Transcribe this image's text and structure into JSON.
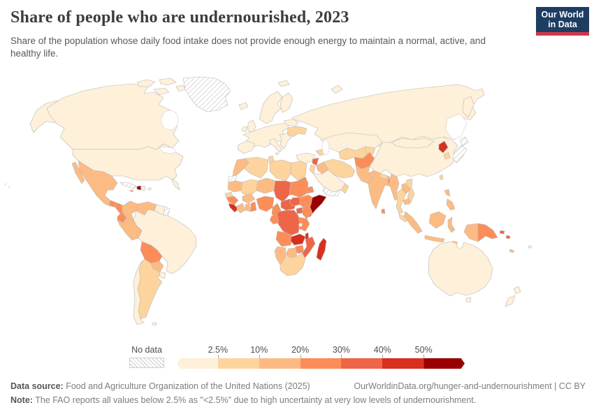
{
  "header": {
    "title": "Share of people who are undernourished, 2023",
    "subtitle": "Share of the population whose daily food intake does not provide enough energy to maintain a normal, active, and healthy life."
  },
  "logo": {
    "line1": "Our World",
    "line2": "in Data",
    "bg_color": "#1d3d63",
    "accent_color": "#d2374a"
  },
  "legend": {
    "no_data_label": "No data",
    "tick_labels": [
      "2.5%",
      "10%",
      "20%",
      "30%",
      "40%",
      "50%"
    ]
  },
  "footer": {
    "source_label": "Data source:",
    "source_text": " Food and Agriculture Organization of the United Nations (2025)",
    "attribution": "OurWorldinData.org/hunger-and-undernourishment | CC BY",
    "note_label": "Note:",
    "note_text": " The FAO reports all values below 2.5% as \"<2.5%\" due to high uncertainty at very low levels of undernourishment."
  },
  "chart_data": {
    "type": "choropleth-map",
    "title": "Share of people who are undernourished, 2023",
    "unit": "% of population",
    "legend_position": "bottom",
    "bins": [
      {
        "label": "<2.5%",
        "color": "#fef0d9"
      },
      {
        "label": "2.5%-10%",
        "color": "#fdd49e"
      },
      {
        "label": "10%-20%",
        "color": "#fdbb84"
      },
      {
        "label": "20%-30%",
        "color": "#fc8d59"
      },
      {
        "label": "30%-40%",
        "color": "#ef6548"
      },
      {
        "label": "40%-50%",
        "color": "#d7301f"
      },
      {
        "label": ">50%",
        "color": "#990000"
      },
      {
        "label": "No data",
        "color": "hatched"
      }
    ],
    "regions": {
      "canada": 0,
      "usa": 0,
      "alaska": 0,
      "florida": 0,
      "arctic-1": 0,
      "arctic-2": 0,
      "arctic-3": 0,
      "arctic-4": 0,
      "greenland": "nd",
      "iceland": 0,
      "svalbard": 0,
      "novaya-zemlya": 0,
      "mexico": 2,
      "baja": 2,
      "guatemala": 3,
      "honduras-nicaragua": 3,
      "costa-rica-panama": 1,
      "cuba": "nd",
      "haiti": 6,
      "dominican-republic": 0,
      "puerto-rico": 0,
      "jamaica": 2,
      "colombia": 2,
      "venezuela": 2,
      "guyana-suriname": 0,
      "french-guiana": "nd",
      "ecuador": 3,
      "peru": 2,
      "brazil": 0,
      "bolivia": 3,
      "paraguay": 2,
      "argentina": 1,
      "chile": 0,
      "uruguay": 0,
      "falklands": 0,
      "uk": 0,
      "ireland": 0,
      "scandinavia": 0,
      "finland": 0,
      "west-europe": 0,
      "iberia": 0,
      "italy": 0,
      "sicily": 0,
      "balkans": 0,
      "ukraine": 1,
      "belarus-baltics": 0,
      "russia": 0,
      "kamchatka": 0,
      "turkey": 0,
      "caucasus": 1,
      "syria": 4,
      "iraq": 2,
      "jordan-israel": 1,
      "saudi-arabia": 0,
      "yemen": "nd",
      "oman": 1,
      "iran": 1,
      "kazakhstan": 0,
      "uzbek-turkmen": 1,
      "kyrgyz-tajik": 1,
      "afghanistan": 3,
      "pakistan": 2,
      "india": 2,
      "nepal": 1,
      "bangladesh": 3,
      "sri-lanka": 3,
      "china": 0,
      "mongolia": 0,
      "north-korea": 5,
      "south-korea": 1,
      "japan-north": "nd",
      "japan-south": "nd",
      "taiwan": 1,
      "myanmar": 2,
      "thailand": 1,
      "laos": 2,
      "vietnam": 1,
      "cambodia": 2,
      "malaysia": 1,
      "sumatra": 2,
      "java": 2,
      "borneo": 2,
      "sulawesi": 2,
      "timor": 2,
      "papua-west": 2,
      "png": 3,
      "philippines-north": 2,
      "philippines-south": 2,
      "solomon-1": 4,
      "solomon-2": 4,
      "fiji": 0,
      "new-caledonia": 2,
      "australia": 0,
      "tasmania": 0,
      "nz-north": 0,
      "nz-south": 0,
      "morocco": 2,
      "western-sahara": "nd",
      "algeria": 1,
      "tunisia": 1,
      "libya": 1,
      "egypt": 1,
      "mauritania": 2,
      "mali": 1,
      "niger": 2,
      "chad": 4,
      "sudan": 3,
      "eritrea-djibouti": 3,
      "senegal": 1,
      "guinea": 3,
      "sierra-leone-liberia": 5,
      "ivory-coast": 2,
      "ghana": 2,
      "togo-benin": 3,
      "burkina-faso": 2,
      "nigeria": 3,
      "cameroon": 3,
      "car": 4,
      "south-sudan": 4,
      "ethiopia": 3,
      "somalia": 6,
      "uganda": 4,
      "kenya": 3,
      "drc": 4,
      "congo-gabon": 3,
      "tanzania": 3,
      "angola": 3,
      "zambia": 5,
      "malawi": 5,
      "mozambique": 4,
      "zimbabwe": 3,
      "botswana": 2,
      "namibia": 2,
      "south-africa": 1,
      "madagascar": 5
    }
  }
}
